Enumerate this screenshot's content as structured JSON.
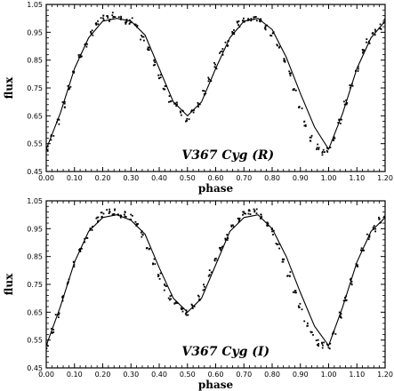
{
  "chart_data": [
    {
      "type": "scatter",
      "annotation": "V367  Cyg  (R)",
      "xlabel": "phase",
      "ylabel": "flux",
      "xlim": [
        0.0,
        1.2
      ],
      "ylim": [
        0.45,
        1.05
      ],
      "x_ticks": [
        "0.00",
        "0.10",
        "0.20",
        "0.30",
        "0.40",
        "0.50",
        "0.60",
        "0.70",
        "0.80",
        "0.90",
        "1.00",
        "1.10",
        "1.20"
      ],
      "y_ticks": [
        "0.45",
        "0.55",
        "0.65",
        "0.75",
        "0.85",
        "0.95",
        "1.05"
      ],
      "grid": false,
      "series": [
        {
          "kind": "observations",
          "x": [
            0.0,
            0.02,
            0.04,
            0.06,
            0.08,
            0.1,
            0.12,
            0.14,
            0.16,
            0.18,
            0.2,
            0.22,
            0.24,
            0.26,
            0.28,
            0.3,
            0.32,
            0.34,
            0.36,
            0.38,
            0.4,
            0.42,
            0.44,
            0.46,
            0.48,
            0.5,
            0.52,
            0.54,
            0.56,
            0.58,
            0.6,
            0.62,
            0.64,
            0.66,
            0.68,
            0.7,
            0.72,
            0.74,
            0.76,
            0.78,
            0.8,
            0.82,
            0.84,
            0.86,
            0.88,
            0.9,
            0.92,
            0.94,
            0.96,
            0.98,
            1.0,
            1.02,
            1.04,
            1.06,
            1.08,
            1.1,
            1.12,
            1.14,
            1.16,
            1.18,
            1.2
          ],
          "y": [
            0.53,
            0.57,
            0.63,
            0.69,
            0.75,
            0.81,
            0.86,
            0.9,
            0.95,
            0.98,
            1.0,
            1.0,
            1.01,
            1.0,
            0.99,
            0.99,
            0.97,
            0.93,
            0.89,
            0.84,
            0.79,
            0.75,
            0.71,
            0.69,
            0.66,
            0.64,
            0.66,
            0.69,
            0.73,
            0.78,
            0.83,
            0.88,
            0.91,
            0.95,
            0.98,
            0.99,
            1.0,
            1.0,
            0.99,
            0.97,
            0.94,
            0.9,
            0.85,
            0.8,
            0.74,
            0.68,
            0.62,
            0.57,
            0.54,
            0.52,
            0.53,
            0.57,
            0.63,
            0.7,
            0.76,
            0.82,
            0.88,
            0.92,
            0.95,
            0.97,
            0.99
          ]
        },
        {
          "kind": "model",
          "x": [
            0.0,
            0.05,
            0.1,
            0.15,
            0.2,
            0.25,
            0.3,
            0.35,
            0.4,
            0.45,
            0.5,
            0.55,
            0.6,
            0.65,
            0.7,
            0.75,
            0.8,
            0.85,
            0.9,
            0.95,
            1.0,
            1.05,
            1.1,
            1.15,
            1.2
          ],
          "y": [
            0.53,
            0.66,
            0.82,
            0.93,
            0.99,
            1.0,
            0.99,
            0.94,
            0.82,
            0.7,
            0.65,
            0.7,
            0.82,
            0.93,
            0.99,
            1.0,
            0.96,
            0.86,
            0.73,
            0.61,
            0.53,
            0.66,
            0.82,
            0.93,
            0.99
          ]
        }
      ]
    },
    {
      "type": "scatter",
      "annotation": "V367  Cyg  (I)",
      "xlabel": "phase",
      "ylabel": "flux",
      "xlim": [
        0.0,
        1.2
      ],
      "ylim": [
        0.45,
        1.05
      ],
      "x_ticks": [
        "0.00",
        "0.10",
        "0.20",
        "0.30",
        "0.40",
        "0.50",
        "0.60",
        "0.70",
        "0.80",
        "0.90",
        "1.00",
        "1.10",
        "1.20"
      ],
      "y_ticks": [
        "0.45",
        "0.55",
        "0.65",
        "0.75",
        "0.85",
        "0.95",
        "1.05"
      ],
      "grid": false,
      "series": [
        {
          "kind": "observations",
          "x": [
            0.0,
            0.02,
            0.04,
            0.06,
            0.08,
            0.1,
            0.12,
            0.14,
            0.16,
            0.18,
            0.2,
            0.22,
            0.24,
            0.26,
            0.28,
            0.3,
            0.32,
            0.34,
            0.36,
            0.38,
            0.4,
            0.42,
            0.44,
            0.46,
            0.48,
            0.5,
            0.52,
            0.54,
            0.56,
            0.58,
            0.6,
            0.62,
            0.64,
            0.66,
            0.68,
            0.7,
            0.72,
            0.74,
            0.76,
            0.78,
            0.8,
            0.82,
            0.84,
            0.86,
            0.88,
            0.9,
            0.92,
            0.94,
            0.96,
            0.98,
            1.0,
            1.02,
            1.04,
            1.06,
            1.08,
            1.1,
            1.12,
            1.14,
            1.16,
            1.18,
            1.2
          ],
          "y": [
            0.53,
            0.58,
            0.64,
            0.7,
            0.76,
            0.82,
            0.87,
            0.91,
            0.95,
            0.98,
            1.0,
            1.01,
            1.01,
            1.0,
            1.0,
            0.99,
            0.97,
            0.93,
            0.88,
            0.83,
            0.78,
            0.74,
            0.7,
            0.68,
            0.66,
            0.65,
            0.67,
            0.7,
            0.74,
            0.79,
            0.84,
            0.88,
            0.92,
            0.96,
            0.98,
            1.0,
            1.01,
            1.01,
            0.99,
            0.97,
            0.94,
            0.89,
            0.84,
            0.79,
            0.73,
            0.67,
            0.61,
            0.57,
            0.54,
            0.53,
            0.53,
            0.58,
            0.64,
            0.7,
            0.76,
            0.82,
            0.88,
            0.92,
            0.95,
            0.98,
            1.0
          ]
        },
        {
          "kind": "model",
          "x": [
            0.0,
            0.05,
            0.1,
            0.15,
            0.2,
            0.25,
            0.3,
            0.35,
            0.4,
            0.45,
            0.5,
            0.55,
            0.6,
            0.65,
            0.7,
            0.75,
            0.8,
            0.85,
            0.9,
            0.95,
            1.0,
            1.05,
            1.1,
            1.15,
            1.2
          ],
          "y": [
            0.53,
            0.67,
            0.83,
            0.94,
            0.99,
            1.0,
            0.98,
            0.93,
            0.81,
            0.7,
            0.65,
            0.7,
            0.82,
            0.94,
            0.99,
            1.0,
            0.95,
            0.85,
            0.72,
            0.6,
            0.53,
            0.67,
            0.83,
            0.94,
            0.99
          ]
        }
      ]
    }
  ]
}
